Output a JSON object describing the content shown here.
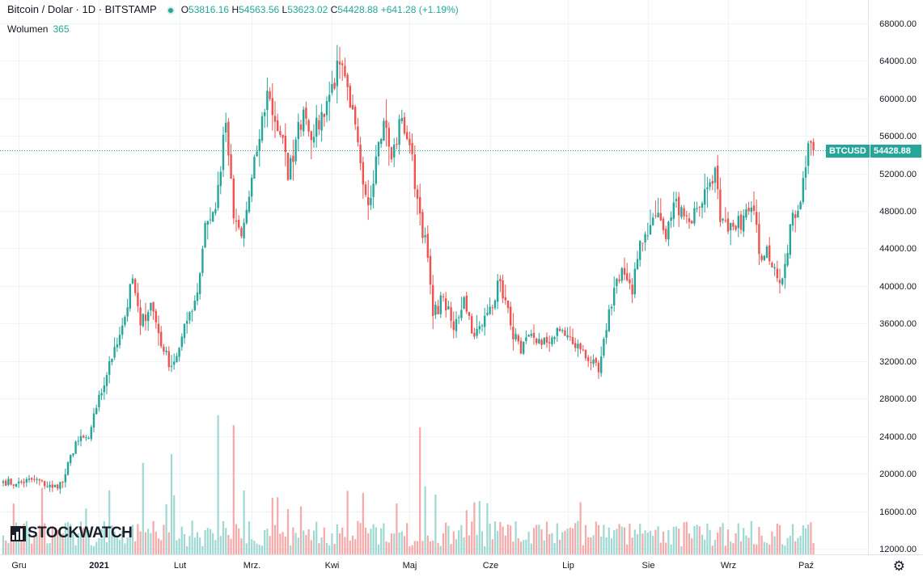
{
  "header": {
    "title": "Bitcoin / Dolar · 1D · BITSTAMP",
    "open_label": "O",
    "open": "53816.16",
    "high_label": "H",
    "high": "54563.56",
    "low_label": "L",
    "low": "53623.02",
    "close_label": "C",
    "close": "54428.88",
    "change": "+641.28 (+1.19%)"
  },
  "volume_legend": {
    "label": "Wolumen",
    "value": "365"
  },
  "logo": "STOCKWATCH",
  "price_tag": {
    "symbol": "BTCUSD",
    "value": "54428.88"
  },
  "colors": {
    "up": "#26a69a",
    "down": "#ef5350",
    "up_volume": "#9fd8d2",
    "down_volume": "#f5a9a8",
    "grid": "#f0f3fa"
  },
  "chart_data": {
    "type": "candlestick",
    "instrument": "BTCUSD",
    "timeframe": "1D",
    "ylim": [
      11500,
      70000
    ],
    "yticks": [
      "12000.00",
      "16000.00",
      "20000.00",
      "24000.00",
      "28000.00",
      "32000.00",
      "36000.00",
      "40000.00",
      "44000.00",
      "48000.00",
      "52000.00",
      "56000.00",
      "60000.00",
      "64000.00",
      "68000.00"
    ],
    "yticks_values": [
      12000,
      16000,
      20000,
      24000,
      28000,
      32000,
      36000,
      40000,
      44000,
      48000,
      52000,
      56000,
      60000,
      64000,
      68000
    ],
    "xticks": [
      "Gru",
      "2021",
      "Lut",
      "Mrz.",
      "Kwi",
      "Maj",
      "Cze",
      "Lip",
      "Sie",
      "Wrz",
      "Paź"
    ],
    "xtick_day_index": [
      6,
      37,
      68,
      96,
      127,
      157,
      188,
      218,
      249,
      280,
      310
    ],
    "current_price": 54428.88,
    "close_anchors": [
      [
        0,
        19200
      ],
      [
        5,
        18900
      ],
      [
        12,
        19400
      ],
      [
        19,
        18500
      ],
      [
        23,
        19100
      ],
      [
        28,
        23400
      ],
      [
        33,
        23800
      ],
      [
        36,
        27000
      ],
      [
        40,
        30500
      ],
      [
        43,
        33500
      ],
      [
        47,
        36700
      ],
      [
        50,
        40800
      ],
      [
        53,
        35800
      ],
      [
        57,
        38200
      ],
      [
        62,
        33000
      ],
      [
        65,
        31500
      ],
      [
        68,
        33400
      ],
      [
        72,
        37200
      ],
      [
        75,
        39300
      ],
      [
        78,
        46700
      ],
      [
        82,
        48200
      ],
      [
        86,
        57400
      ],
      [
        89,
        47200
      ],
      [
        92,
        45300
      ],
      [
        95,
        49500
      ],
      [
        98,
        54300
      ],
      [
        102,
        60800
      ],
      [
        105,
        57500
      ],
      [
        108,
        55800
      ],
      [
        110,
        51300
      ],
      [
        113,
        55600
      ],
      [
        116,
        58800
      ],
      [
        120,
        55900
      ],
      [
        125,
        59700
      ],
      [
        130,
        63600
      ],
      [
        134,
        59000
      ],
      [
        137,
        55300
      ],
      [
        141,
        48600
      ],
      [
        144,
        53800
      ],
      [
        147,
        57600
      ],
      [
        150,
        53500
      ],
      [
        154,
        57900
      ],
      [
        157,
        55000
      ],
      [
        160,
        49300
      ],
      [
        164,
        43000
      ],
      [
        166,
        36800
      ],
      [
        170,
        38800
      ],
      [
        174,
        35300
      ],
      [
        178,
        38800
      ],
      [
        182,
        34600
      ],
      [
        185,
        35800
      ],
      [
        188,
        37800
      ],
      [
        192,
        40500
      ],
      [
        196,
        35800
      ],
      [
        200,
        32800
      ],
      [
        204,
        34900
      ],
      [
        208,
        33700
      ],
      [
        212,
        34500
      ],
      [
        216,
        35300
      ],
      [
        220,
        33800
      ],
      [
        224,
        33200
      ],
      [
        227,
        31800
      ],
      [
        230,
        30800
      ],
      [
        233,
        35300
      ],
      [
        236,
        39800
      ],
      [
        239,
        41900
      ],
      [
        243,
        39100
      ],
      [
        246,
        44800
      ],
      [
        250,
        46500
      ],
      [
        253,
        47800
      ],
      [
        256,
        45000
      ],
      [
        259,
        48900
      ],
      [
        262,
        48400
      ],
      [
        265,
        46800
      ],
      [
        268,
        48300
      ],
      [
        272,
        50500
      ],
      [
        275,
        52600
      ],
      [
        277,
        46800
      ],
      [
        280,
        45800
      ],
      [
        283,
        46000
      ],
      [
        286,
        47500
      ],
      [
        290,
        48000
      ],
      [
        292,
        43400
      ],
      [
        295,
        44200
      ],
      [
        298,
        42000
      ],
      [
        301,
        40800
      ],
      [
        303,
        43500
      ],
      [
        305,
        47800
      ],
      [
        307,
        48000
      ],
      [
        309,
        51500
      ],
      [
        311,
        55200
      ],
      [
        313,
        54430
      ]
    ],
    "volume_spikes": [
      {
        "day": 83,
        "value": 14000
      },
      {
        "day": 89,
        "value": 13000
      },
      {
        "day": 161,
        "value": 12800
      },
      {
        "day": 65,
        "value": 10100
      },
      {
        "day": 54,
        "value": 9200
      }
    ]
  }
}
